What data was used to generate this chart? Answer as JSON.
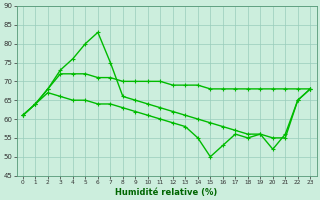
{
  "xlabel": "Humidité relative (%)",
  "bg_color": "#cceedd",
  "grid_color": "#99ccbb",
  "line_color": "#00bb00",
  "x": [
    0,
    1,
    2,
    3,
    4,
    5,
    6,
    7,
    8,
    9,
    10,
    11,
    12,
    13,
    14,
    15,
    16,
    17,
    18,
    19,
    20,
    21,
    22,
    23
  ],
  "line1": [
    61,
    64,
    68,
    73,
    76,
    80,
    83,
    75,
    66,
    65,
    64,
    63,
    62,
    61,
    60,
    59,
    58,
    57,
    56,
    56,
    55,
    55,
    65,
    68
  ],
  "line2": [
    61,
    64,
    68,
    72,
    72,
    72,
    71,
    71,
    70,
    70,
    70,
    70,
    69,
    69,
    69,
    68,
    68,
    68,
    68,
    68,
    68,
    68,
    68,
    68
  ],
  "line3": [
    61,
    64,
    67,
    66,
    65,
    65,
    64,
    64,
    63,
    62,
    61,
    60,
    59,
    58,
    55,
    50,
    53,
    56,
    55,
    56,
    52,
    56,
    65,
    68
  ],
  "ylim": [
    45,
    90
  ],
  "yticks": [
    45,
    50,
    55,
    60,
    65,
    70,
    75,
    80,
    85,
    90
  ],
  "xticks": [
    0,
    1,
    2,
    3,
    4,
    5,
    6,
    7,
    8,
    9,
    10,
    11,
    12,
    13,
    14,
    15,
    16,
    17,
    18,
    19,
    20,
    21,
    22,
    23
  ],
  "xlabel_fontsize": 6.0,
  "ytick_fontsize": 5.0,
  "xtick_fontsize": 4.2
}
